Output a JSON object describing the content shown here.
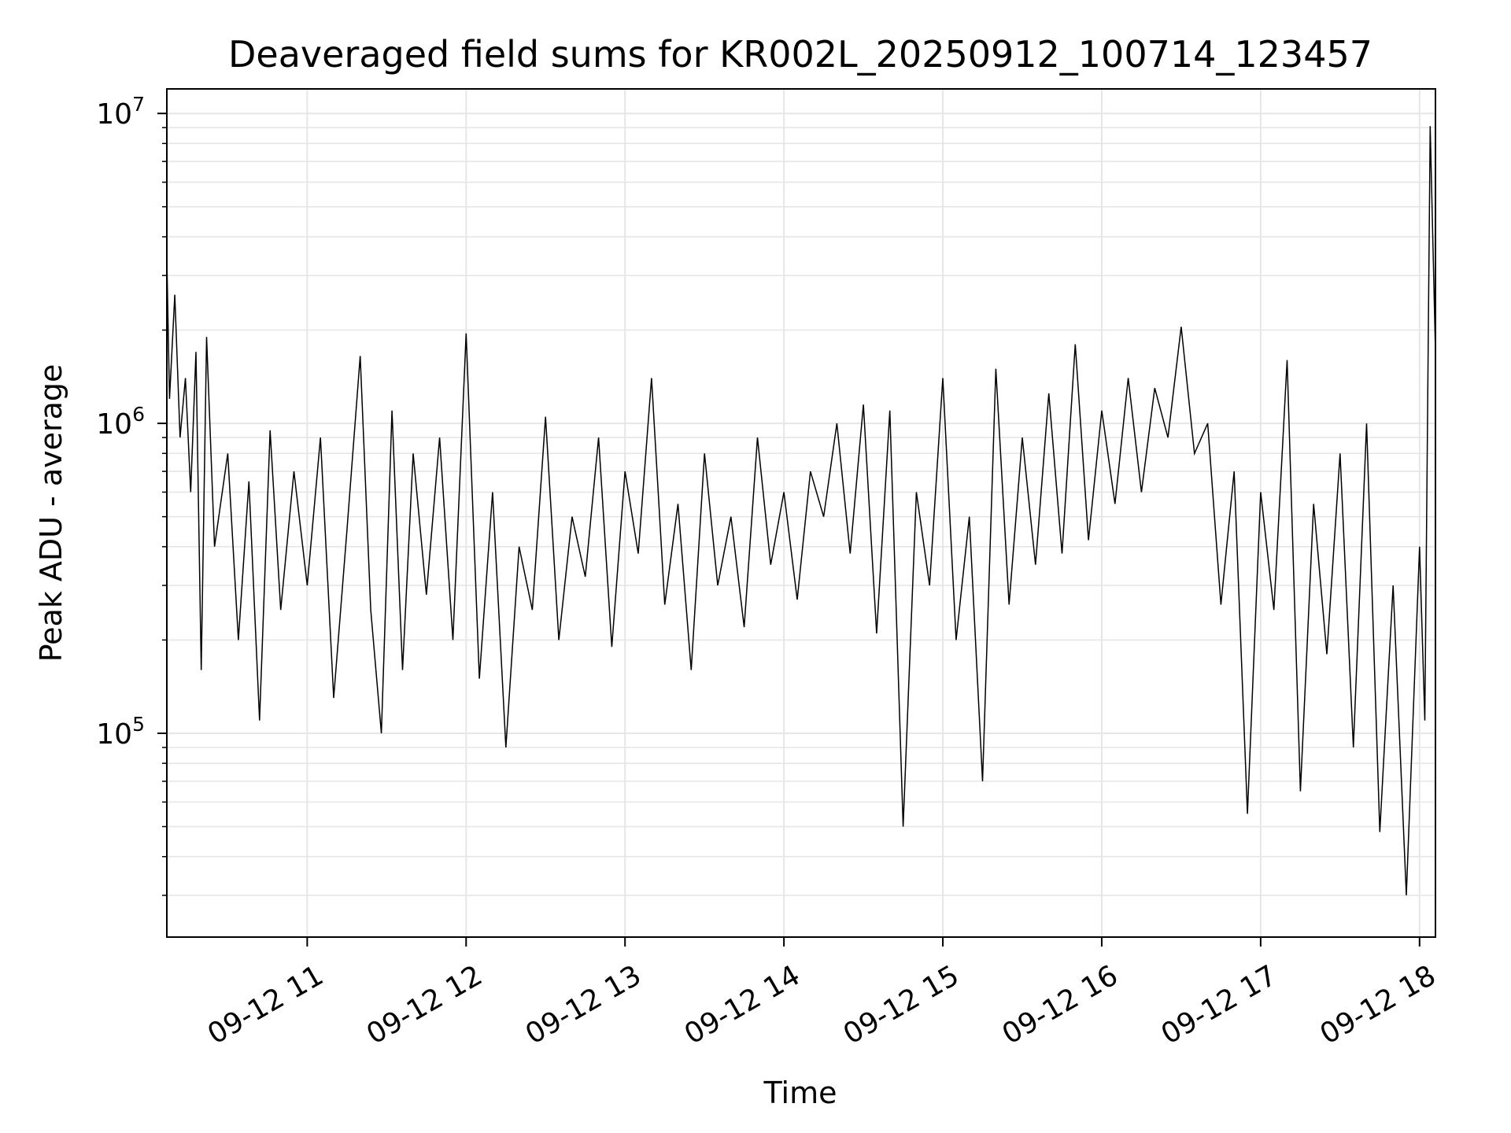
{
  "chart_data": {
    "type": "line",
    "title": "Deaveraged field sums for KR002L_20250912_100714_123457",
    "xlabel": "Time",
    "ylabel": "Peak ADU - average",
    "yscale": "log",
    "ylim": [
      22000,
      12000000
    ],
    "xlim": [
      "09-12 10:07",
      "09-12 18:06"
    ],
    "grid": true,
    "line_color": "#000000",
    "grid_color": "#e6e6e6",
    "x_ticks": [
      {
        "value": "09-12 11:00",
        "label": "09-12 11"
      },
      {
        "value": "09-12 12:00",
        "label": "09-12 12"
      },
      {
        "value": "09-12 13:00",
        "label": "09-12 13"
      },
      {
        "value": "09-12 14:00",
        "label": "09-12 14"
      },
      {
        "value": "09-12 15:00",
        "label": "09-12 15"
      },
      {
        "value": "09-12 16:00",
        "label": "09-12 16"
      },
      {
        "value": "09-12 17:00",
        "label": "09-12 17"
      },
      {
        "value": "09-12 18:00",
        "label": "09-12 18"
      }
    ],
    "y_ticks": [
      {
        "value": 100000,
        "base": "10",
        "exp": "5"
      },
      {
        "value": 1000000,
        "base": "10",
        "exp": "6"
      },
      {
        "value": 10000000,
        "base": "10",
        "exp": "7"
      }
    ],
    "series": [
      {
        "x": [
          "09-12 10:07",
          "09-12 10:08",
          "09-12 10:10",
          "09-12 10:12",
          "09-12 10:14",
          "09-12 10:16",
          "09-12 10:18",
          "09-12 10:20",
          "09-12 10:22",
          "09-12 10:25",
          "09-12 10:30",
          "09-12 10:34",
          "09-12 10:38",
          "09-12 10:42",
          "09-12 10:46",
          "09-12 10:50",
          "09-12 10:55",
          "09-12 11:00",
          "09-12 11:05",
          "09-12 11:10",
          "09-12 11:15",
          "09-12 11:20",
          "09-12 11:24",
          "09-12 11:28",
          "09-12 11:32",
          "09-12 11:36",
          "09-12 11:40",
          "09-12 11:45",
          "09-12 11:50",
          "09-12 11:55",
          "09-12 12:00",
          "09-12 12:05",
          "09-12 12:10",
          "09-12 12:15",
          "09-12 12:20",
          "09-12 12:25",
          "09-12 12:30",
          "09-12 12:35",
          "09-12 12:40",
          "09-12 12:45",
          "09-12 12:50",
          "09-12 12:55",
          "09-12 13:00",
          "09-12 13:05",
          "09-12 13:10",
          "09-12 13:15",
          "09-12 13:20",
          "09-12 13:25",
          "09-12 13:30",
          "09-12 13:35",
          "09-12 13:40",
          "09-12 13:45",
          "09-12 13:50",
          "09-12 13:55",
          "09-12 14:00",
          "09-12 14:05",
          "09-12 14:10",
          "09-12 14:15",
          "09-12 14:20",
          "09-12 14:25",
          "09-12 14:30",
          "09-12 14:35",
          "09-12 14:40",
          "09-12 14:45",
          "09-12 14:50",
          "09-12 14:55",
          "09-12 15:00",
          "09-12 15:05",
          "09-12 15:10",
          "09-12 15:15",
          "09-12 15:20",
          "09-12 15:25",
          "09-12 15:30",
          "09-12 15:35",
          "09-12 15:40",
          "09-12 15:45",
          "09-12 15:50",
          "09-12 15:55",
          "09-12 16:00",
          "09-12 16:05",
          "09-12 16:10",
          "09-12 16:15",
          "09-12 16:20",
          "09-12 16:25",
          "09-12 16:30",
          "09-12 16:35",
          "09-12 16:40",
          "09-12 16:45",
          "09-12 16:50",
          "09-12 16:55",
          "09-12 17:00",
          "09-12 17:05",
          "09-12 17:10",
          "09-12 17:15",
          "09-12 17:20",
          "09-12 17:25",
          "09-12 17:30",
          "09-12 17:35",
          "09-12 17:40",
          "09-12 17:45",
          "09-12 17:50",
          "09-12 17:55",
          "09-12 18:00",
          "09-12 18:02",
          "09-12 18:04",
          "09-12 18:06"
        ],
        "y": [
          3400000,
          1200000,
          2600000,
          900000,
          1400000,
          600000,
          1700000,
          160000,
          1900000,
          400000,
          800000,
          200000,
          650000,
          110000,
          950000,
          250000,
          700000,
          300000,
          900000,
          130000,
          450000,
          1650000,
          250000,
          100000,
          1100000,
          160000,
          800000,
          280000,
          900000,
          200000,
          1950000,
          150000,
          600000,
          90000,
          400000,
          250000,
          1050000,
          200000,
          500000,
          320000,
          900000,
          190000,
          700000,
          380000,
          1400000,
          260000,
          550000,
          160000,
          800000,
          300000,
          500000,
          220000,
          900000,
          350000,
          600000,
          270000,
          700000,
          500000,
          1000000,
          380000,
          1150000,
          210000,
          1100000,
          50000,
          600000,
          300000,
          1400000,
          200000,
          500000,
          70000,
          1500000,
          260000,
          900000,
          350000,
          1250000,
          380000,
          1800000,
          420000,
          1100000,
          550000,
          1400000,
          600000,
          1300000,
          900000,
          2050000,
          800000,
          1000000,
          260000,
          700000,
          55000,
          600000,
          250000,
          1600000,
          65000,
          550000,
          180000,
          800000,
          90000,
          1000000,
          48000,
          300000,
          30000,
          400000,
          110000,
          9100000,
          1700000
        ]
      }
    ]
  }
}
